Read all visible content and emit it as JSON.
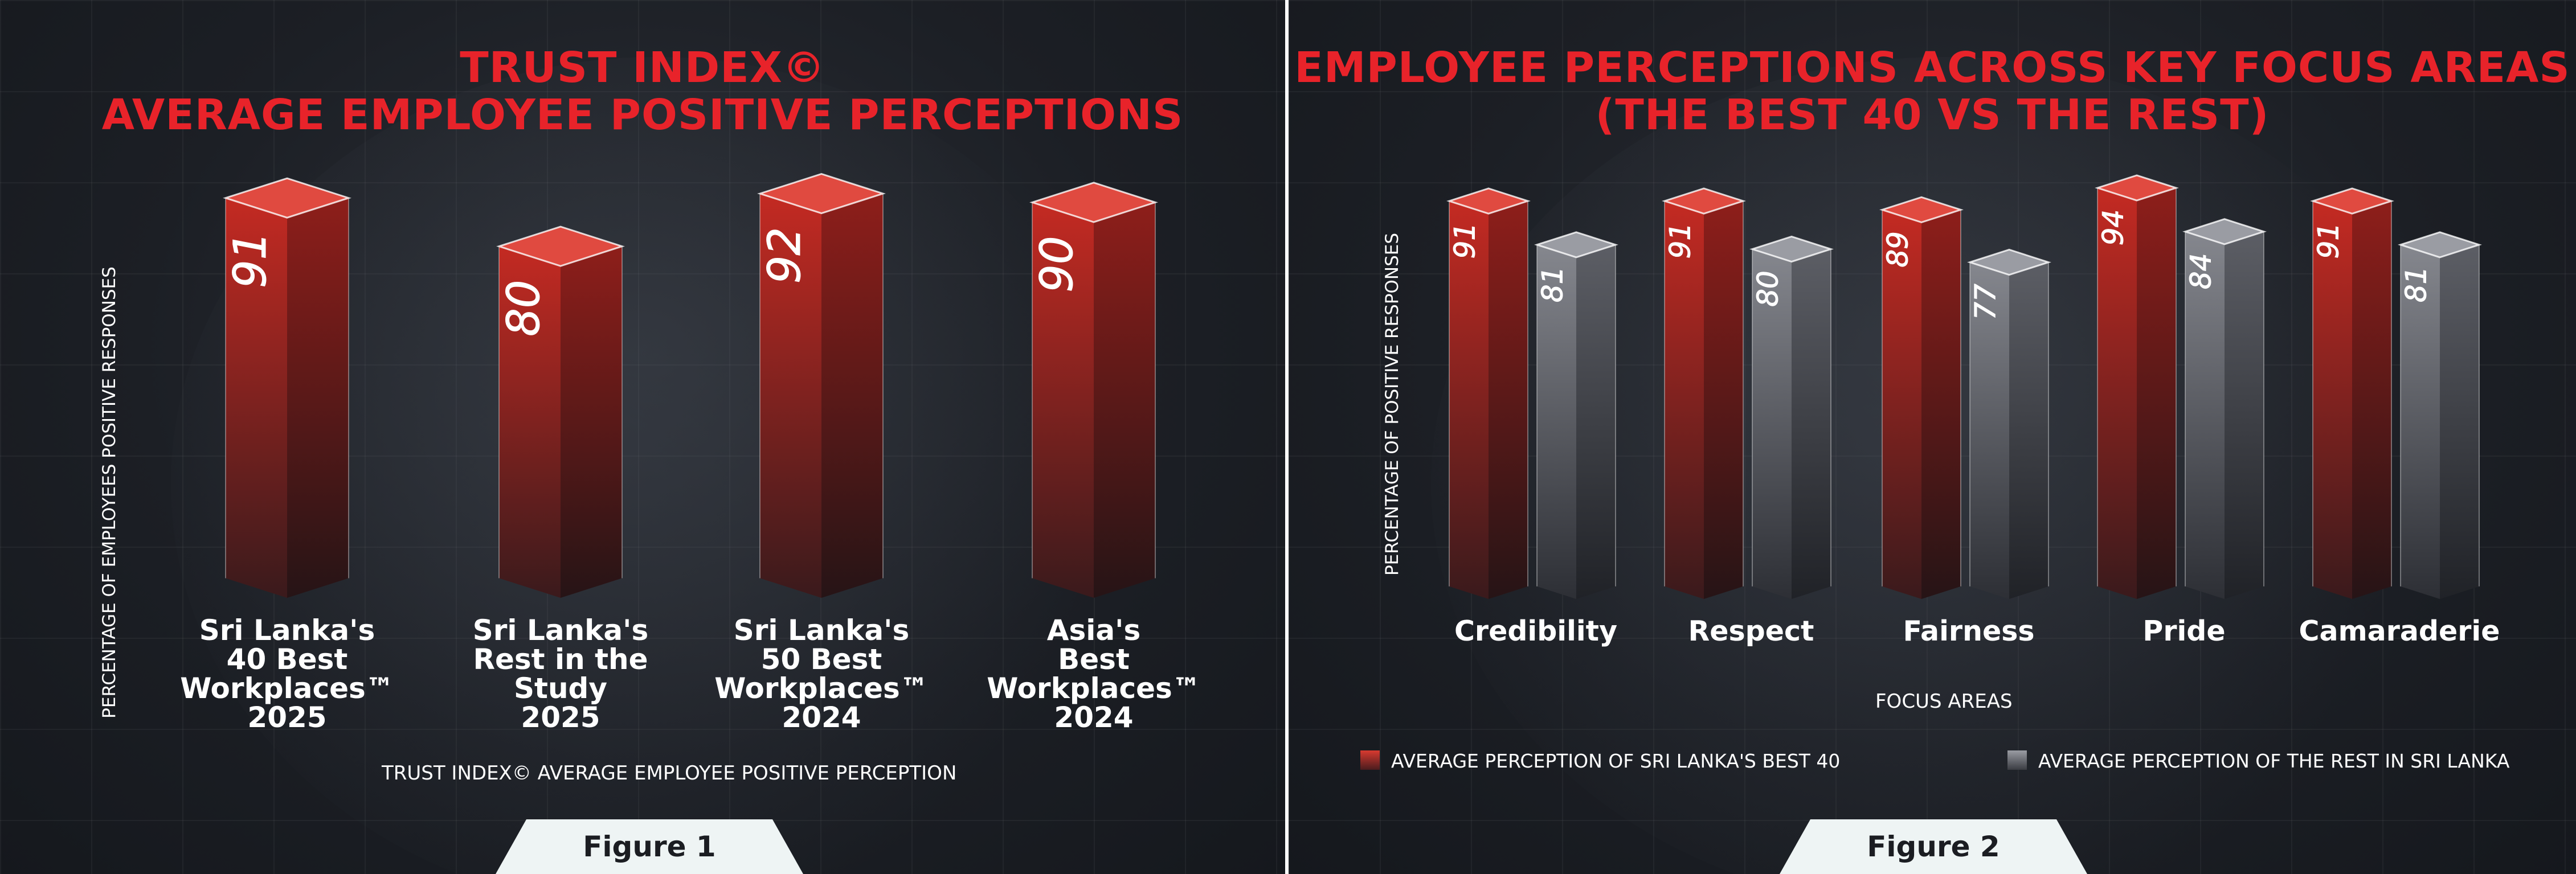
{
  "colors": {
    "title": "#e8232a",
    "bar_red_top": "#e04a40",
    "bar_red_front_top": "#c42a22",
    "bar_red_front_bottom": "#3a1a1c",
    "bar_grey_top": "#9a9ca3",
    "bar_grey_front_top": "#85878e",
    "bar_grey_front_bottom": "#2d2f35",
    "background": "#1c1f25"
  },
  "figure1": {
    "title_line1": "TRUST INDEX©",
    "title_line2": "AVERAGE EMPLOYEE POSITIVE PERCEPTIONS",
    "tab_label": "Figure 1",
    "chart_data": {
      "type": "bar",
      "title": "TRUST INDEX© AVERAGE EMPLOYEE POSITIVE PERCEPTIONS",
      "xlabel": "TRUST INDEX© AVERAGE EMPLOYEE POSITIVE PERCEPTION",
      "ylabel": "PERCENTAGE OF EMPLOYEES POSITIVE RESPONSES",
      "categories": [
        [
          "Sri Lanka's",
          "40 Best",
          "Workplaces™",
          "2025"
        ],
        [
          "Sri Lanka's",
          "Rest in the",
          "Study",
          "2025"
        ],
        [
          "Sri Lanka's",
          "50 Best",
          "Workplaces™",
          "2024"
        ],
        [
          "Asia's",
          "Best",
          "Workplaces™",
          "2024"
        ]
      ],
      "values": [
        91,
        80,
        92,
        90
      ],
      "ylim": [
        0,
        100
      ],
      "grid": true
    }
  },
  "figure2": {
    "title_line1": "EMPLOYEE PERCEPTIONS ACROSS KEY FOCUS AREAS",
    "title_line2": "(THE BEST 40 VS THE REST)",
    "tab_label": "Figure 2",
    "chart_data": {
      "type": "bar",
      "title": "EMPLOYEE PERCEPTIONS ACROSS KEY FOCUS AREAS (THE BEST 40 VS THE REST)",
      "xlabel": "FOCUS AREAS",
      "ylabel": "PERCENTAGE OF POSITIVE RESPONSES",
      "categories": [
        "Credibility",
        "Respect",
        "Fairness",
        "Pride",
        "Camaraderie"
      ],
      "series": [
        {
          "name": "AVERAGE PERCEPTION OF SRI LANKA'S BEST 40",
          "values": [
            91,
            91,
            89,
            94,
            91
          ],
          "color": "red"
        },
        {
          "name": "AVERAGE PERCEPTION OF THE REST IN SRI LANKA",
          "values": [
            81,
            80,
            77,
            84,
            81
          ],
          "color": "grey"
        }
      ],
      "ylim": [
        0,
        100
      ],
      "legend": "bottom",
      "grid": true
    }
  }
}
